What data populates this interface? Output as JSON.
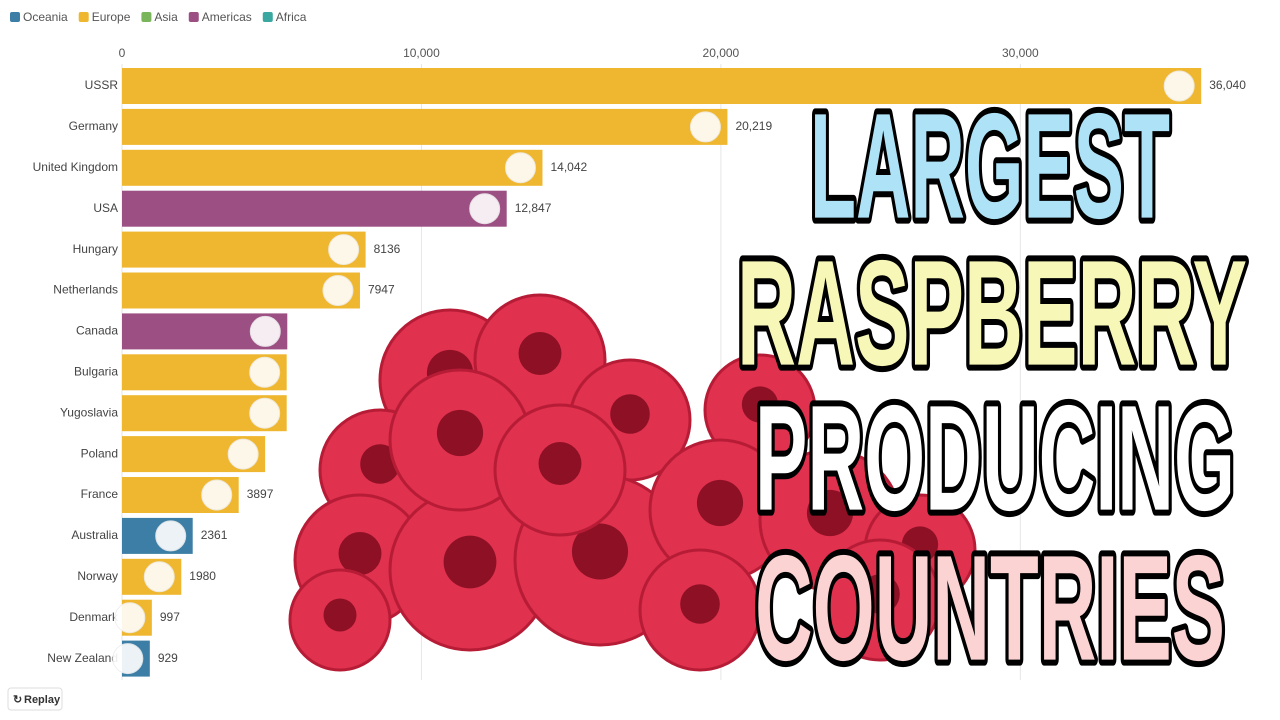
{
  "chart_data": {
    "type": "bar",
    "orientation": "horizontal",
    "legend": [
      {
        "name": "Oceania",
        "color": "#3d7ea6"
      },
      {
        "name": "Europe",
        "color": "#efb730"
      },
      {
        "name": "Asia",
        "color": "#7ab55c"
      },
      {
        "name": "Americas",
        "color": "#9c4f82"
      },
      {
        "name": "Africa",
        "color": "#3aa8a0"
      }
    ],
    "categories": [
      "USSR",
      "Germany",
      "United Kingdom",
      "USA",
      "Hungary",
      "Netherlands",
      "Canada",
      "Bulgaria",
      "Yugoslavia",
      "Poland",
      "France",
      "Australia",
      "Norway",
      "Denmark",
      "New Zealand"
    ],
    "values": [
      36040,
      20219,
      14042,
      12847,
      8136,
      7947,
      5520,
      5500,
      5500,
      4780,
      3897,
      2361,
      1980,
      997,
      929
    ],
    "value_labels": [
      "36,040",
      "20,219",
      "14,042",
      "12,847",
      "8136",
      "7947",
      null,
      null,
      null,
      null,
      "3897",
      "2361",
      "1980",
      "997",
      "929"
    ],
    "colors": [
      "#efb730",
      "#efb730",
      "#efb730",
      "#9c4f82",
      "#efb730",
      "#efb730",
      "#9c4f82",
      "#efb730",
      "#efb730",
      "#efb730",
      "#efb730",
      "#3d7ea6",
      "#efb730",
      "#efb730",
      "#3d7ea6"
    ],
    "xlim": [
      0,
      36000
    ],
    "xticks": [
      0,
      {
        "value": 10000,
        "label": "10,000"
      },
      {
        "value": 20000,
        "label": "20,000"
      },
      {
        "value": 30000,
        "label": "30,000"
      }
    ],
    "grid": true,
    "overlay_title": [
      "LARGEST",
      "RASPBERRY",
      "PRODUCING",
      "COUNTRIES"
    ],
    "overlay_colors": [
      "#aee3f7",
      "#f7f7b8",
      "#ffffff",
      "#fbd3d3"
    ],
    "button": "Replay"
  }
}
